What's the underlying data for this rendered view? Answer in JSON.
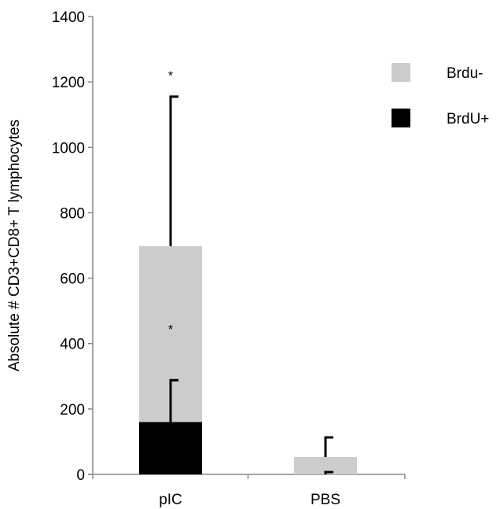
{
  "chart_data": {
    "type": "bar",
    "stacked": true,
    "categories": [
      "pIC",
      "PBS"
    ],
    "series": [
      {
        "name": "BrdU+",
        "values": [
          160,
          0
        ],
        "error": [
          128,
          7
        ],
        "color": "#000000"
      },
      {
        "name": "Brdu-",
        "values": [
          538,
          53
        ],
        "error": [
          457,
          60
        ],
        "color": "#cccccc"
      }
    ],
    "totals": [
      698,
      53
    ],
    "ylabel": "Absolute #  CD3+CD8+ T lymphocytes",
    "xlabel": "",
    "ylim": [
      0,
      1400
    ],
    "yticks": [
      0,
      200,
      400,
      600,
      800,
      1000,
      1200,
      1400
    ],
    "legend_order": [
      "Brdu-",
      "BrdU+"
    ],
    "legend_position": "top-right",
    "annotations": [
      {
        "text": "*",
        "category": "pIC",
        "y": 1230
      },
      {
        "text": "*",
        "category": "pIC",
        "y": 455
      }
    ],
    "grid": false
  }
}
